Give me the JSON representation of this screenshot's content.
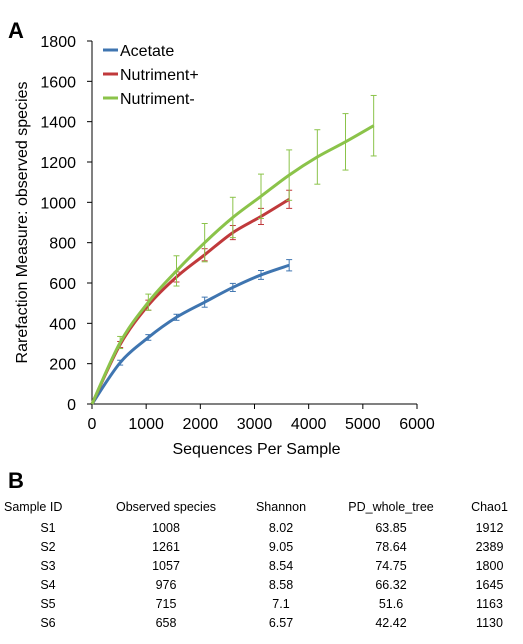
{
  "panel_a_label": "A",
  "panel_b_label": "B",
  "chart_data": {
    "type": "line",
    "xlabel": "Sequences Per Sample",
    "ylabel": "Rarefaction Measure: observed species",
    "xlim": [
      0,
      6000
    ],
    "ylim": [
      0,
      1800
    ],
    "xticks": [
      0,
      1000,
      2000,
      3000,
      4000,
      5000,
      6000
    ],
    "yticks": [
      0,
      200,
      400,
      600,
      800,
      1000,
      1200,
      1400,
      1600,
      1800
    ],
    "grid": false,
    "legend_position": "top-left",
    "series": [
      {
        "name": "Acetate",
        "color": "#3f75b0",
        "x": [
          0,
          520,
          1040,
          1560,
          2080,
          2600,
          3120,
          3640
        ],
        "y": [
          0,
          205,
          330,
          430,
          505,
          578,
          640,
          688
        ],
        "err": [
          0,
          12,
          14,
          15,
          25,
          20,
          22,
          28
        ]
      },
      {
        "name": "Nutriment+",
        "color": "#c0393b",
        "x": [
          0,
          520,
          1040,
          1560,
          2080,
          2600,
          3120,
          3640
        ],
        "y": [
          0,
          295,
          490,
          630,
          740,
          850,
          930,
          1015
        ],
        "err": [
          0,
          15,
          25,
          25,
          30,
          35,
          40,
          45
        ]
      },
      {
        "name": "Nutriment-",
        "color": "#8bc34a",
        "x": [
          0,
          520,
          1040,
          1560,
          2080,
          2600,
          3120,
          3640,
          4160,
          4680,
          5200
        ],
        "y": [
          0,
          305,
          505,
          660,
          800,
          925,
          1030,
          1135,
          1225,
          1300,
          1380
        ],
        "err": [
          0,
          30,
          40,
          75,
          95,
          100,
          110,
          125,
          135,
          140,
          150
        ]
      }
    ]
  },
  "table": {
    "headers": [
      "Sample ID",
      "Observed species",
      "Shannon",
      "PD_whole_tree",
      "Chao1"
    ],
    "rows": [
      [
        "S1",
        "1008",
        "8.02",
        "63.85",
        "1912"
      ],
      [
        "S2",
        "1261",
        "9.05",
        "78.64",
        "2389"
      ],
      [
        "S3",
        "1057",
        "8.54",
        "74.75",
        "1800"
      ],
      [
        "S4",
        "976",
        "8.58",
        "66.32",
        "1645"
      ],
      [
        "S5",
        "715",
        "7.1",
        "51.6",
        "1163"
      ],
      [
        "S6",
        "658",
        "6.57",
        "42.42",
        "1130"
      ]
    ]
  }
}
